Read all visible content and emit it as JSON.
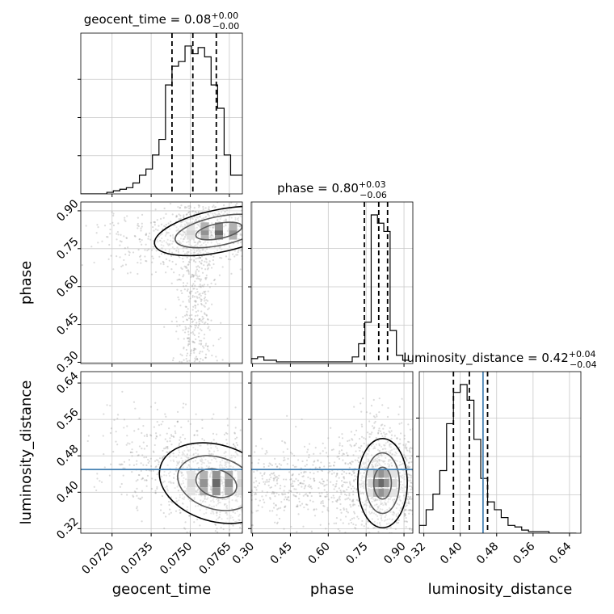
{
  "chart_data": {
    "type": "corner",
    "parameters": [
      "geocent_time",
      "phase",
      "luminosity_distance"
    ],
    "truths": {
      "luminosity_distance": 0.45
    },
    "truth_color": "#4682b4",
    "ranges": {
      "geocent_time": [
        0.0708,
        0.077
      ],
      "phase": [
        0.295,
        0.935
      ],
      "luminosity_distance": [
        0.31,
        0.665
      ]
    },
    "ticks": {
      "geocent_time": [
        "0.0720",
        "0.0735",
        "0.0750",
        "0.0765"
      ],
      "phase": [
        "0.30",
        "0.45",
        "0.60",
        "0.75",
        "0.90"
      ],
      "luminosity_distance": [
        "0.32",
        "0.40",
        "0.48",
        "0.56",
        "0.64"
      ]
    },
    "titles": [
      {
        "param": "geocent_time",
        "name": "geocent_time",
        "median": "0.08",
        "plus": "+0.00",
        "minus": "−0.00"
      },
      {
        "param": "phase",
        "name": "phase",
        "median": "0.80",
        "plus": "+0.03",
        "minus": "−0.06"
      },
      {
        "param": "luminosity_distance",
        "name": "luminosity_distance",
        "median": "0.42",
        "plus": "+0.04",
        "minus": "−0.04"
      }
    ],
    "histograms": {
      "geocent_time": {
        "edges": [
          0.0708,
          0.07105,
          0.0713,
          0.07155,
          0.0718,
          0.07205,
          0.0723,
          0.07255,
          0.0728,
          0.07305,
          0.0733,
          0.07355,
          0.0738,
          0.07405,
          0.0743,
          0.07455,
          0.0748,
          0.07505,
          0.0753,
          0.07555,
          0.0758,
          0.07605,
          0.0763,
          0.07655,
          0.0768,
          0.07705
        ],
        "counts": [
          0,
          0,
          0,
          0,
          1,
          2,
          3,
          4,
          7,
          12,
          16,
          25,
          35,
          70,
          82,
          85,
          95,
          90,
          94,
          88,
          70,
          55,
          25,
          12,
          12
        ],
        "quantiles": [
          0.0743,
          0.0751,
          0.076
        ]
      },
      "phase": {
        "edges": [
          0.295,
          0.32,
          0.345,
          0.37,
          0.395,
          0.42,
          0.445,
          0.47,
          0.495,
          0.52,
          0.545,
          0.57,
          0.595,
          0.62,
          0.645,
          0.67,
          0.695,
          0.72,
          0.745,
          0.77,
          0.795,
          0.82,
          0.845,
          0.87,
          0.895,
          0.92
        ],
        "counts": [
          3,
          4,
          2,
          2,
          1,
          1,
          1,
          1,
          1,
          1,
          1,
          1,
          1,
          1,
          1,
          1,
          4,
          12,
          25,
          90,
          85,
          80,
          20,
          5,
          2
        ],
        "quantiles": [
          0.743,
          0.8,
          0.835
        ]
      },
      "luminosity_distance": {
        "edges": [
          0.31,
          0.325,
          0.34,
          0.355,
          0.37,
          0.385,
          0.4,
          0.415,
          0.43,
          0.445,
          0.46,
          0.475,
          0.49,
          0.505,
          0.52,
          0.535,
          0.55,
          0.565,
          0.58,
          0.595,
          0.61,
          0.625,
          0.64,
          0.655
        ],
        "counts": [
          5,
          15,
          25,
          40,
          70,
          90,
          95,
          85,
          60,
          35,
          20,
          15,
          10,
          5,
          4,
          2,
          1,
          1,
          1,
          0,
          0,
          0,
          0
        ],
        "quantiles": [
          0.385,
          0.42,
          0.46
        ]
      }
    },
    "joint_modes": [
      {
        "x": "geocent_time",
        "y": "phase",
        "cx": 0.0761,
        "cy": 0.82,
        "sx": 0.0009,
        "sy": 0.03,
        "rho": 0.3
      },
      {
        "x": "geocent_time",
        "y": "luminosity_distance",
        "cx": 0.076,
        "cy": 0.42,
        "sx": 0.0008,
        "sy": 0.03,
        "rho": -0.45
      },
      {
        "x": "phase",
        "y": "luminosity_distance",
        "cx": 0.815,
        "cy": 0.42,
        "sx": 0.035,
        "sy": 0.035,
        "rho": 0.0
      }
    ]
  }
}
